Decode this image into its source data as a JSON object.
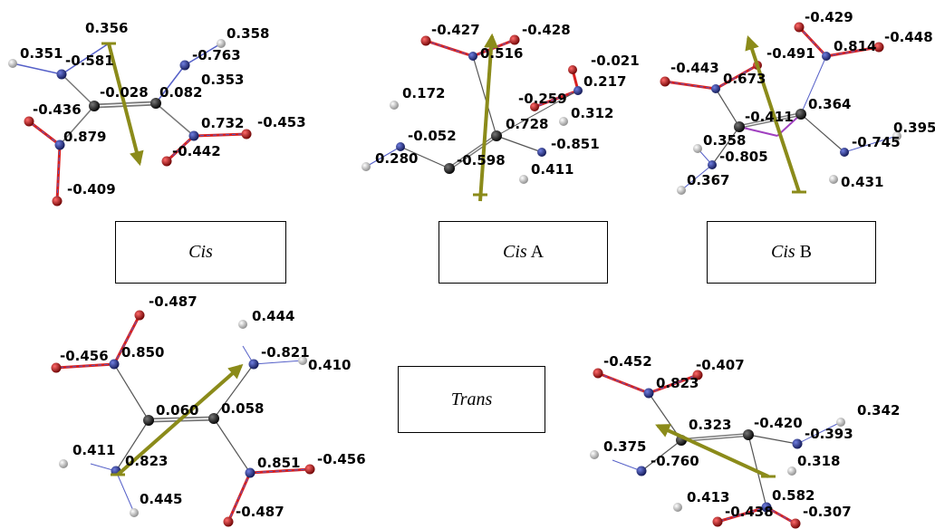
{
  "colors": {
    "carbon": "#1a1a1a",
    "nitrogen": "#1f2b7a",
    "oxygen": "#b01818",
    "hydrogen": "#cfcfcf",
    "dipole_arrow": "#8b8b1a",
    "bond_single": "#555555",
    "bond_n": "#5560c8",
    "bond_o": "#d82020"
  },
  "structures": [
    {
      "id": "cis",
      "label_italic": "Cis",
      "label_suffix": "",
      "charges": [
        "0.356",
        "0.358",
        "0.351",
        "-0.581",
        "-0.763",
        "0.353",
        "-0.028",
        "0.082",
        "-0.436",
        "0.732",
        "-0.453",
        "0.879",
        "-0.442",
        "-0.409"
      ]
    },
    {
      "id": "cis-a",
      "label_italic": "Cis",
      "label_suffix": " A",
      "charges": [
        "-0.427",
        "-0.428",
        "0.516",
        "-0.021",
        "0.217",
        "0.172",
        "-0.259",
        "0.312",
        "-0.052",
        "0.728",
        "-0.851",
        "0.280",
        "-0.598",
        "0.411"
      ]
    },
    {
      "id": "cis-b",
      "label_italic": "Cis",
      "label_suffix": " B",
      "charges": [
        "-0.429",
        "-0.448",
        "0.814",
        "-0.491",
        "-0.443",
        "0.673",
        "0.364",
        "-0.411",
        "0.395",
        "0.358",
        "-0.745",
        "-0.805",
        "0.367",
        "0.431"
      ]
    },
    {
      "id": "trans-1",
      "label_italic": "",
      "label_suffix": "",
      "charges": [
        "-0.487",
        "0.444",
        "-0.456",
        "0.850",
        "-0.821",
        "0.410",
        "0.060",
        "0.058",
        "0.411",
        "0.823",
        "0.851",
        "-0.456",
        "0.445",
        "-0.487"
      ]
    },
    {
      "id": "trans-2",
      "label_italic": "Trans",
      "label_suffix": "",
      "charges": [
        "-0.452",
        "-0.407",
        "0.823",
        "0.342",
        "0.323",
        "-0.420",
        "-0.393",
        "0.375",
        "-0.760",
        "0.318",
        "0.413",
        "0.582",
        "-0.438",
        "-0.307"
      ]
    }
  ]
}
